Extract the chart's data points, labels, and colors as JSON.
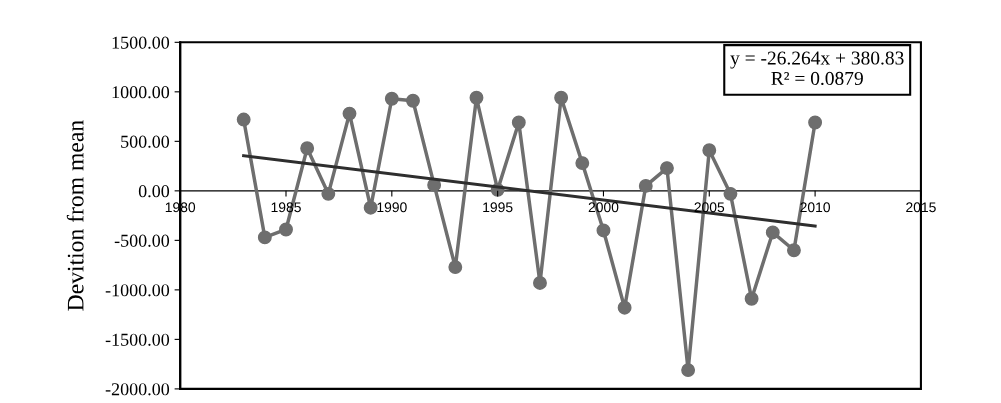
{
  "chart_data": {
    "type": "line",
    "ylabel": "Devition from mean",
    "x": [
      1983,
      1984,
      1985,
      1986,
      1987,
      1988,
      1989,
      1990,
      1991,
      1992,
      1993,
      1994,
      1995,
      1996,
      1997,
      1998,
      1999,
      2000,
      2001,
      2002,
      2003,
      2004,
      2005,
      2006,
      2007,
      2008,
      2009,
      2010
    ],
    "series": [
      {
        "color": "#6e6e6e",
        "marker": "circle",
        "values": [
          720,
          -470,
          -390,
          430,
          -30,
          780,
          -170,
          930,
          910,
          60,
          -770,
          940,
          10,
          690,
          -930,
          940,
          280,
          -400,
          -1180,
          50,
          230,
          -1810,
          410,
          -30,
          -1090,
          -420,
          -600,
          690
        ]
      },
      {
        "type": "line",
        "color": "#2e2e2e",
        "marker": "none",
        "x": [
          1983,
          2010
        ],
        "values": [
          355,
          -355
        ]
      }
    ],
    "xlim": [
      1980,
      2015
    ],
    "xticks": [
      1980,
      1985,
      1990,
      1995,
      2000,
      2005,
      2010,
      2015
    ],
    "ylim": [
      -2000,
      1500
    ],
    "yticks": [
      {
        "value": -2000,
        "label": "-2000.00"
      },
      {
        "value": -1500,
        "label": "-1500.00"
      },
      {
        "value": -1000,
        "label": "-1000.00"
      },
      {
        "value": -500,
        "label": "-500.00"
      },
      {
        "value": 0,
        "label": "0.00"
      },
      {
        "value": 500,
        "label": "500.00"
      },
      {
        "value": 1000,
        "label": "1000.00"
      },
      {
        "value": 1500,
        "label": "1500.00"
      }
    ],
    "annotations": [
      "y = -26.264x + 380.83\nR² = 0.0879"
    ],
    "grid": false
  }
}
